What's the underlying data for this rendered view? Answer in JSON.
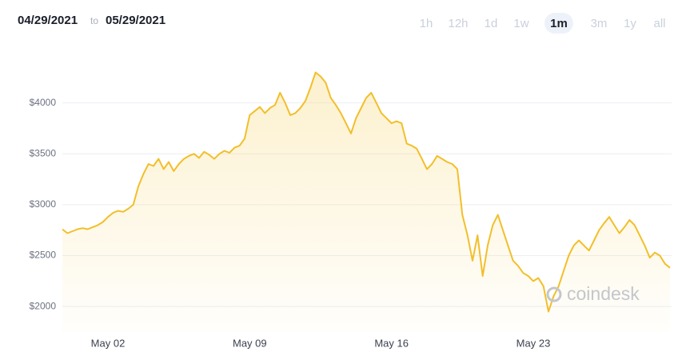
{
  "header": {
    "from_date": "04/29/2021",
    "separator": "to",
    "to_date": "05/29/2021",
    "ranges": [
      "1h",
      "12h",
      "1d",
      "1w",
      "1m",
      "3m",
      "1y",
      "all"
    ],
    "selected_range": "1m"
  },
  "chart_data": {
    "type": "area",
    "watermark": "coindesk",
    "color": "#f2bf2a",
    "grid": true,
    "categories": [
      null,
      null,
      null,
      null,
      null,
      null,
      null,
      null,
      null,
      "May 02",
      null,
      null,
      null,
      null,
      null,
      null,
      null,
      null,
      null,
      null,
      null,
      null,
      null,
      null,
      null,
      null,
      null,
      null,
      null,
      null,
      null,
      null,
      null,
      null,
      null,
      null,
      null,
      "May 09",
      null,
      null,
      null,
      null,
      null,
      null,
      null,
      null,
      null,
      null,
      null,
      null,
      null,
      null,
      null,
      null,
      null,
      null,
      null,
      null,
      null,
      null,
      null,
      null,
      null,
      null,
      null,
      "May 16",
      null,
      null,
      null,
      null,
      null,
      null,
      null,
      null,
      null,
      null,
      null,
      null,
      null,
      null,
      null,
      null,
      null,
      null,
      null,
      null,
      null,
      null,
      null,
      null,
      null,
      null,
      null,
      "May 23",
      null,
      null,
      null,
      null,
      null,
      null,
      null,
      null,
      null,
      null,
      null,
      null,
      null,
      null,
      null,
      null,
      null,
      null,
      null,
      null,
      null,
      null,
      null,
      null,
      null,
      null,
      null
    ],
    "values": [
      2760,
      2720,
      2740,
      2760,
      2770,
      2760,
      2780,
      2800,
      2830,
      2880,
      2920,
      2940,
      2930,
      2960,
      3000,
      3180,
      3300,
      3400,
      3380,
      3450,
      3350,
      3420,
      3330,
      3400,
      3450,
      3480,
      3500,
      3460,
      3520,
      3490,
      3450,
      3500,
      3530,
      3510,
      3560,
      3580,
      3650,
      3880,
      3920,
      3960,
      3900,
      3950,
      3980,
      4100,
      4000,
      3880,
      3900,
      3950,
      4020,
      4150,
      4300,
      4260,
      4200,
      4050,
      3980,
      3900,
      3800,
      3700,
      3850,
      3950,
      4050,
      4100,
      4000,
      3900,
      3850,
      3800,
      3820,
      3800,
      3600,
      3580,
      3550,
      3450,
      3350,
      3400,
      3480,
      3450,
      3420,
      3400,
      3350,
      2900,
      2700,
      2450,
      2700,
      2300,
      2600,
      2800,
      2900,
      2750,
      2600,
      2450,
      2400,
      2330,
      2300,
      2250,
      2280,
      2200,
      1950,
      2100,
      2200,
      2350,
      2500,
      2600,
      2650,
      2600,
      2550,
      2650,
      2750,
      2820,
      2880,
      2800,
      2720,
      2780,
      2850,
      2800,
      2700,
      2600,
      2480,
      2530,
      2500,
      2420,
      2380
    ],
    "ylim": [
      1750,
      4500
    ],
    "yticks": [
      {
        "value": 2000,
        "label": "$2000"
      },
      {
        "value": 2500,
        "label": "$2500"
      },
      {
        "value": 3000,
        "label": "$3000"
      },
      {
        "value": 3500,
        "label": "$3500"
      },
      {
        "value": 4000,
        "label": "$4000"
      }
    ]
  }
}
